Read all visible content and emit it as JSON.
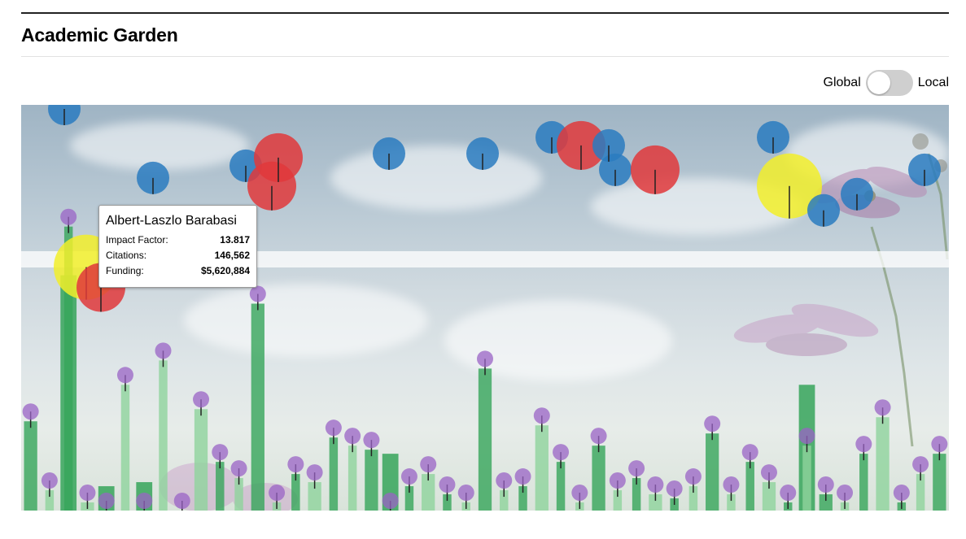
{
  "page": {
    "title": "Academic Garden"
  },
  "toggle": {
    "left_label": "Global",
    "right_label": "Local",
    "state": "Global"
  },
  "tooltip": {
    "name": "Albert-Laszlo Barabasi",
    "rows": [
      {
        "label": "Impact Factor:",
        "value": "13.817"
      },
      {
        "label": "Citations:",
        "value": "146,562"
      },
      {
        "label": "Funding:",
        "value": "$5,620,884"
      }
    ]
  },
  "colors": {
    "stem_dark": "#36a55a",
    "stem_light": "#8fd39c",
    "impact_yellow": "#f2ee2a",
    "citations_red": "#e0383b",
    "funding_blue": "#2a7bbf",
    "small_purple": "#9a63c5"
  },
  "chart_data": {
    "type": "bar",
    "xlabel": "",
    "ylabel": "",
    "ylim": [
      0,
      500
    ],
    "series": [
      {
        "values": [
          110,
          25,
          350,
          10,
          0,
          155,
          0,
          185,
          0,
          125,
          60,
          40,
          255,
          10,
          45,
          35,
          90,
          80,
          75,
          0,
          30,
          45,
          20,
          10,
          175,
          25,
          30,
          105,
          60,
          10,
          80,
          25,
          40,
          20,
          15,
          30,
          95,
          20,
          60,
          35,
          10,
          80,
          20,
          10,
          70,
          115,
          10,
          45,
          70
        ]
      },
      {
        "values": [
          0,
          0,
          290,
          0,
          30,
          0,
          35,
          0,
          0,
          0,
          0,
          0,
          0,
          0,
          0,
          0,
          0,
          0,
          0,
          70,
          0,
          0,
          0,
          0,
          0,
          0,
          0,
          0,
          0,
          0,
          0,
          0,
          0,
          0,
          0,
          0,
          0,
          0,
          0,
          0,
          0,
          155,
          0,
          0,
          0,
          0,
          0,
          0,
          0
        ]
      }
    ],
    "markers": [
      {
        "x": 53,
        "y": 495,
        "r": 20,
        "color": "blue"
      },
      {
        "x": 80,
        "y": 300,
        "r": 40,
        "color": "yellow"
      },
      {
        "x": 98,
        "y": 275,
        "r": 30,
        "color": "red"
      },
      {
        "x": 162,
        "y": 410,
        "r": 20,
        "color": "blue"
      },
      {
        "x": 276,
        "y": 425,
        "r": 20,
        "color": "blue"
      },
      {
        "x": 308,
        "y": 400,
        "r": 30,
        "color": "red"
      },
      {
        "x": 316,
        "y": 435,
        "r": 30,
        "color": "red"
      },
      {
        "x": 452,
        "y": 440,
        "r": 20,
        "color": "blue"
      },
      {
        "x": 567,
        "y": 440,
        "r": 20,
        "color": "blue"
      },
      {
        "x": 652,
        "y": 460,
        "r": 20,
        "color": "blue"
      },
      {
        "x": 688,
        "y": 450,
        "r": 30,
        "color": "red"
      },
      {
        "x": 730,
        "y": 420,
        "r": 20,
        "color": "blue"
      },
      {
        "x": 722,
        "y": 450,
        "r": 20,
        "color": "blue"
      },
      {
        "x": 779,
        "y": 420,
        "r": 30,
        "color": "red"
      },
      {
        "x": 944,
        "y": 400,
        "r": 40,
        "color": "yellow"
      },
      {
        "x": 924,
        "y": 460,
        "r": 20,
        "color": "blue"
      },
      {
        "x": 986,
        "y": 370,
        "r": 20,
        "color": "blue"
      },
      {
        "x": 1027,
        "y": 390,
        "r": 20,
        "color": "blue"
      },
      {
        "x": 1110,
        "y": 420,
        "r": 20,
        "color": "blue"
      }
    ]
  }
}
